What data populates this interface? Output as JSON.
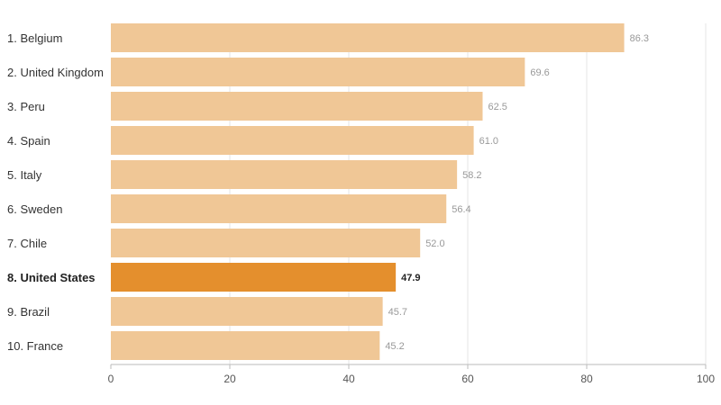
{
  "chart_data": {
    "type": "bar",
    "orientation": "horizontal",
    "categories": [
      "1. Belgium",
      "2. United Kingdom",
      "3. Peru",
      "4. Spain",
      "5. Italy",
      "6. Sweden",
      "7. Chile",
      "8. United States",
      "9. Brazil",
      "10. France"
    ],
    "values": [
      86.3,
      69.6,
      62.5,
      61.0,
      58.2,
      56.4,
      52.0,
      47.9,
      45.7,
      45.2
    ],
    "value_labels": [
      "86.3",
      "69.6",
      "62.5",
      "61.0",
      "58.2",
      "56.4",
      "52.0",
      "47.9",
      "45.7",
      "45.2"
    ],
    "highlight_index": 7,
    "xlim": [
      0,
      100
    ],
    "xticks": [
      0,
      20,
      40,
      60,
      80,
      100
    ],
    "grid": true,
    "colors": {
      "bar": "#f0c796",
      "highlight": "#e48f2d",
      "grid": "#e6e6e6",
      "axis": "#bbbbbb"
    }
  }
}
